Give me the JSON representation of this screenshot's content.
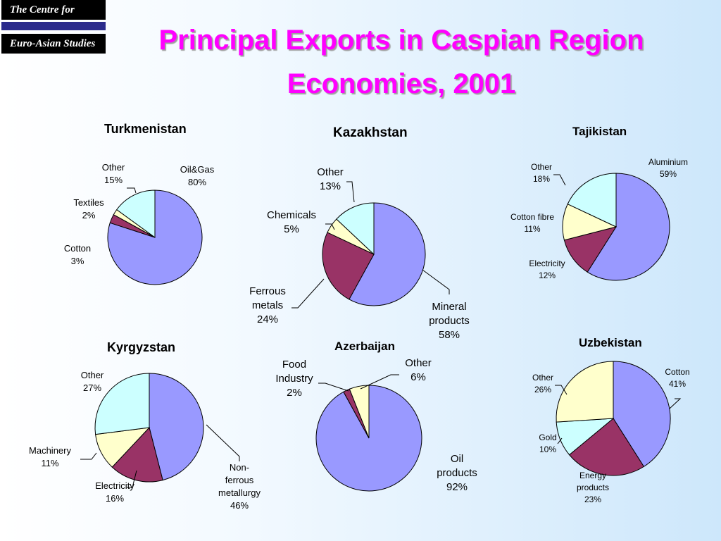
{
  "logo": {
    "line1": "The Centre for",
    "line2": "Euro-Asian Studies"
  },
  "title": {
    "line1": "Principal Exports in Caspian Region",
    "line2": "Economies, 2001"
  },
  "colors": {
    "title": "#ff00ff",
    "slice1": "#9999ff",
    "slice2": "#993366",
    "slice3": "#ffffcc",
    "slice4": "#ccffff"
  },
  "chart_data": [
    {
      "type": "pie",
      "title": "Turkmenistan",
      "categories": [
        "Oil&Gas",
        "Cotton",
        "Textiles",
        "Other"
      ],
      "values": [
        80,
        3,
        2,
        15
      ],
      "labels": [
        "80%",
        "3%",
        "2%",
        "15%"
      ]
    },
    {
      "type": "pie",
      "title": "Kazakhstan",
      "categories": [
        "Mineral products",
        "Ferrous metals",
        "Chemicals",
        "Other"
      ],
      "values": [
        58,
        24,
        5,
        13
      ],
      "labels": [
        "58%",
        "24%",
        "5%",
        "13%"
      ]
    },
    {
      "type": "pie",
      "title": "Tajikistan",
      "categories": [
        "Aluminium",
        "Electricity",
        "Cotton fibre",
        "Other"
      ],
      "values": [
        59,
        12,
        11,
        18
      ],
      "labels": [
        "59%",
        "12%",
        "11%",
        "18%"
      ]
    },
    {
      "type": "pie",
      "title": "Kyrgyzstan",
      "categories": [
        "Non-ferrous metallurgy",
        "Electricity",
        "Machinery",
        "Other"
      ],
      "values": [
        46,
        16,
        11,
        27
      ],
      "labels": [
        "46%",
        "16%",
        "11%",
        "27%"
      ]
    },
    {
      "type": "pie",
      "title": "Azerbaijan",
      "categories": [
        "Oil products",
        "Food Industry",
        "Other"
      ],
      "values": [
        92,
        2,
        6
      ],
      "labels": [
        "92%",
        "2%",
        "6%"
      ]
    },
    {
      "type": "pie",
      "title": "Uzbekistan",
      "categories": [
        "Cotton",
        "Energy products",
        "Gold",
        "Other"
      ],
      "values": [
        41,
        23,
        10,
        26
      ],
      "labels": [
        "41%",
        "23%",
        "10%",
        "26%"
      ]
    }
  ]
}
